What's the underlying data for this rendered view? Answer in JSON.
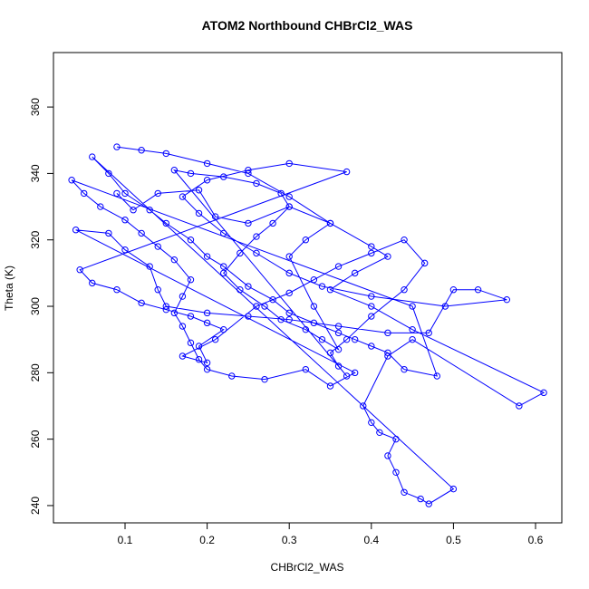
{
  "chart_data": {
    "type": "line",
    "markers": true,
    "title": "ATOM2 Northbound CHBrCl2_WAS",
    "x_label": "CHBrCl2_WAS",
    "y_label": "Theta (K)",
    "xlim": [
      0.0128,
      0.632
    ],
    "ylim": [
      234.8,
      376.4
    ],
    "xticks": [
      0.1,
      0.2,
      0.3,
      0.4,
      0.5,
      0.6
    ],
    "yticks": [
      240,
      260,
      280,
      300,
      320,
      340,
      360
    ],
    "x": [
      0.09,
      0.12,
      0.15,
      0.2,
      0.25,
      0.3,
      0.35,
      0.4,
      0.42,
      0.38,
      0.35,
      0.4,
      0.45,
      0.61,
      0.58,
      0.45,
      0.42,
      0.39,
      0.4,
      0.41,
      0.43,
      0.42,
      0.43,
      0.44,
      0.46,
      0.47,
      0.5,
      0.06,
      0.08,
      0.1,
      0.13,
      0.15,
      0.18,
      0.2,
      0.22,
      0.25,
      0.28,
      0.3,
      0.33,
      0.36,
      0.38,
      0.4,
      0.42,
      0.44,
      0.48,
      0.45,
      0.035,
      0.05,
      0.07,
      0.1,
      0.12,
      0.14,
      0.16,
      0.18,
      0.17,
      0.16,
      0.17,
      0.18,
      0.19,
      0.2,
      0.23,
      0.27,
      0.32,
      0.35,
      0.38,
      0.04,
      0.08,
      0.1,
      0.13,
      0.14,
      0.15,
      0.2,
      0.25,
      0.3,
      0.36,
      0.42,
      0.47,
      0.5,
      0.53,
      0.565,
      0.49,
      0.4,
      0.34,
      0.3,
      0.26,
      0.22,
      0.19,
      0.17,
      0.2,
      0.25,
      0.3,
      0.37,
      0.045,
      0.06,
      0.09,
      0.12,
      0.15,
      0.18,
      0.2,
      0.22,
      0.19,
      0.2,
      0.17,
      0.21,
      0.26,
      0.3,
      0.33,
      0.36,
      0.4,
      0.44,
      0.465,
      0.44,
      0.4,
      0.37,
      0.35,
      0.36,
      0.37,
      0.16,
      0.18,
      0.22,
      0.26,
      0.29,
      0.3,
      0.28,
      0.26,
      0.24,
      0.22,
      0.24,
      0.27,
      0.29,
      0.32,
      0.34,
      0.36,
      0.33,
      0.3,
      0.32,
      0.35,
      0.3,
      0.25,
      0.21,
      0.19,
      0.14,
      0.11,
      0.09
    ],
    "series": [
      {
        "color": "#0000ff",
        "values": [
          348,
          347,
          346,
          343,
          340,
          333,
          325,
          318,
          315,
          310,
          305,
          300,
          293,
          274,
          270,
          290,
          285,
          270,
          265,
          262,
          260,
          255,
          250,
          244,
          242,
          240.5,
          245,
          345,
          340,
          334,
          329,
          325,
          320,
          315,
          312,
          306,
          302,
          298,
          295,
          292,
          290,
          288,
          286,
          281,
          279,
          300,
          338,
          334,
          330,
          326,
          322,
          318,
          314,
          308,
          303,
          298,
          294,
          289,
          284,
          281,
          279,
          278,
          281,
          276,
          280,
          323,
          322,
          317,
          312,
          305,
          300,
          298,
          297,
          296,
          294,
          292,
          292,
          305,
          305,
          302,
          300,
          303,
          306,
          310,
          316,
          322,
          328,
          333,
          338,
          341,
          343,
          340.5,
          311,
          307,
          305,
          301,
          299,
          297,
          295,
          293,
          288,
          283,
          285,
          290,
          300,
          304,
          308,
          312,
          316,
          320,
          313,
          305,
          297,
          290,
          286,
          282,
          279,
          341,
          340,
          339,
          337,
          334,
          330,
          325,
          321,
          316,
          310,
          305,
          300,
          296,
          293,
          290,
          287,
          300,
          315,
          320,
          325,
          330,
          325,
          327,
          335,
          334,
          329,
          334
        ]
      }
    ]
  }
}
